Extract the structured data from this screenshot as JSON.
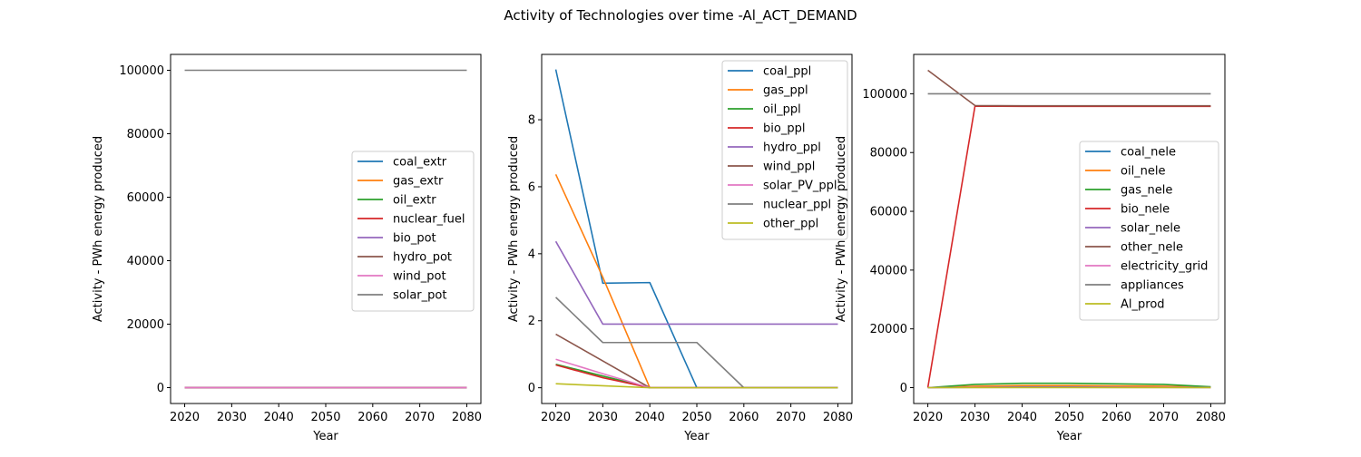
{
  "figure": {
    "suptitle": "Activity of Technologies over time -Al_ACT_DEMAND"
  },
  "chart_data": [
    {
      "type": "line",
      "xlabel": "Year",
      "ylabel": "Activity - PWh energy produced",
      "x": [
        2020,
        2030,
        2040,
        2050,
        2060,
        2070,
        2080
      ],
      "xticks": [
        2020,
        2030,
        2040,
        2050,
        2060,
        2070,
        2080
      ],
      "xlim": [
        2017,
        2083
      ],
      "ylim": [
        -5000,
        105000
      ],
      "yticks": [
        0,
        20000,
        40000,
        60000,
        80000,
        100000
      ],
      "legend_position": "center-right",
      "series": [
        {
          "name": "coal_extr",
          "color": "#1f77b4",
          "values": [
            0,
            0,
            0,
            0,
            0,
            0,
            0
          ]
        },
        {
          "name": "gas_extr",
          "color": "#ff7f0e",
          "values": [
            0,
            0,
            0,
            0,
            0,
            0,
            0
          ]
        },
        {
          "name": "oil_extr",
          "color": "#2ca02c",
          "values": [
            0,
            0,
            0,
            0,
            0,
            0,
            0
          ]
        },
        {
          "name": "nuclear_fuel",
          "color": "#d62728",
          "values": [
            0,
            0,
            0,
            0,
            0,
            0,
            0
          ]
        },
        {
          "name": "bio_pot",
          "color": "#9467bd",
          "values": [
            0,
            0,
            0,
            0,
            0,
            0,
            0
          ]
        },
        {
          "name": "hydro_pot",
          "color": "#8c564b",
          "values": [
            0,
            0,
            0,
            0,
            0,
            0,
            0
          ]
        },
        {
          "name": "wind_pot",
          "color": "#e377c2",
          "values": [
            0,
            0,
            0,
            0,
            0,
            0,
            0
          ]
        },
        {
          "name": "solar_pot",
          "color": "#7f7f7f",
          "values": [
            100000,
            100000,
            100000,
            100000,
            100000,
            100000,
            100000
          ]
        }
      ]
    },
    {
      "type": "line",
      "xlabel": "Year",
      "ylabel": "Activity - PWh energy produced",
      "x": [
        2020,
        2030,
        2040,
        2050,
        2060,
        2070,
        2080
      ],
      "xticks": [
        2020,
        2030,
        2040,
        2050,
        2060,
        2070,
        2080
      ],
      "xlim": [
        2017,
        2083
      ],
      "ylim": [
        -0.47,
        9.95
      ],
      "yticks": [
        0,
        2,
        4,
        6,
        8
      ],
      "legend_position": "upper-right",
      "series": [
        {
          "name": "coal_ppl",
          "color": "#1f77b4",
          "values": [
            9.5,
            3.12,
            3.14,
            0,
            0,
            0,
            0
          ]
        },
        {
          "name": "gas_ppl",
          "color": "#ff7f0e",
          "values": [
            6.37,
            3.3,
            0,
            0,
            0,
            0,
            0
          ]
        },
        {
          "name": "oil_ppl",
          "color": "#2ca02c",
          "values": [
            0.7,
            0.35,
            0,
            0,
            0,
            0,
            0
          ]
        },
        {
          "name": "bio_ppl",
          "color": "#d62728",
          "values": [
            0.68,
            0.3,
            0,
            0,
            0,
            0,
            0
          ]
        },
        {
          "name": "hydro_ppl",
          "color": "#9467bd",
          "values": [
            4.37,
            1.9,
            1.9,
            1.9,
            1.9,
            1.9,
            1.9
          ]
        },
        {
          "name": "wind_ppl",
          "color": "#8c564b",
          "values": [
            1.6,
            0.8,
            0,
            0,
            0,
            0,
            0
          ]
        },
        {
          "name": "solar_PV_ppl",
          "color": "#e377c2",
          "values": [
            0.85,
            0.42,
            0,
            0,
            0,
            0,
            0
          ]
        },
        {
          "name": "nuclear_ppl",
          "color": "#7f7f7f",
          "values": [
            2.7,
            1.35,
            1.35,
            1.35,
            0,
            0,
            0
          ]
        },
        {
          "name": "other_ppl",
          "color": "#bcbd22",
          "values": [
            0.12,
            0.06,
            0,
            0,
            0,
            0,
            0
          ]
        }
      ]
    },
    {
      "type": "line",
      "xlabel": "Year",
      "ylabel": "Activity - PWh energy produced",
      "x": [
        2020,
        2030,
        2040,
        2050,
        2060,
        2070,
        2080
      ],
      "xticks": [
        2020,
        2030,
        2040,
        2050,
        2060,
        2070,
        2080
      ],
      "xlim": [
        2017,
        2083
      ],
      "ylim": [
        -5400,
        113400
      ],
      "yticks": [
        0,
        20000,
        40000,
        60000,
        80000,
        100000
      ],
      "legend_position": "center-right",
      "series": [
        {
          "name": "coal_nele",
          "color": "#1f77b4",
          "values": [
            0,
            300,
            400,
            400,
            350,
            300,
            100
          ]
        },
        {
          "name": "oil_nele",
          "color": "#ff7f0e",
          "values": [
            0,
            500,
            700,
            700,
            600,
            500,
            200
          ]
        },
        {
          "name": "gas_nele",
          "color": "#2ca02c",
          "values": [
            0,
            1100,
            1500,
            1500,
            1300,
            1100,
            300
          ]
        },
        {
          "name": "bio_nele",
          "color": "#d62728",
          "values": [
            0,
            95800,
            95700,
            95700,
            95700,
            95700,
            95700
          ]
        },
        {
          "name": "solar_nele",
          "color": "#9467bd",
          "values": [
            0,
            100,
            150,
            150,
            120,
            100,
            50
          ]
        },
        {
          "name": "other_nele",
          "color": "#8c564b",
          "values": [
            108000,
            96000,
            95900,
            95900,
            95900,
            95900,
            95900
          ]
        },
        {
          "name": "electricity_grid",
          "color": "#e377c2",
          "values": [
            0,
            50,
            80,
            80,
            60,
            50,
            20
          ]
        },
        {
          "name": "appliances",
          "color": "#7f7f7f",
          "values": [
            100000,
            100000,
            100000,
            100000,
            100000,
            100000,
            100000
          ]
        },
        {
          "name": "Al_prod",
          "color": "#bcbd22",
          "values": [
            0,
            0,
            0,
            0,
            0,
            0,
            0
          ]
        }
      ]
    }
  ]
}
